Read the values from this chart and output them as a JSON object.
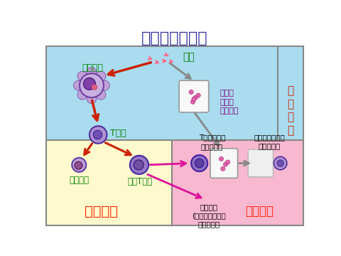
{
  "title": "细胞免疫的过程",
  "title_color": "#2b2b9b",
  "title_fontsize": 16,
  "bg_color": "#ffffff",
  "region_top_color": "#aadcef",
  "region_bottom_left_color": "#fffacd",
  "region_bottom_right_color": "#f7b8d0",
  "labels": {
    "antigen": "抗原",
    "phagocyte": "吞噬细胞",
    "infected_cell": "被抗原\n侵入的\n组织细胞",
    "t_cell": "T细胞",
    "memory_cell": "记忆细胞",
    "effector_t": "效应T细胞",
    "t_contact": "T细胞与靶细\n胞紧密接触",
    "target_destroyed": "靶细胞破裂死亡\n抗原被消灭",
    "lymphokine": "淋巴因子\n(如白细胞介素、\n干扰素等）",
    "response_stage": "感\n应\n阶\n段",
    "reaction_stage": "反应阶段",
    "effect_stage": "效应阶段"
  },
  "label_colors": {
    "antigen": "#008000",
    "phagocyte": "#008000",
    "infected_cell": "#800080",
    "t_cell": "#008000",
    "memory_cell": "#008000",
    "effector_t": "#008000",
    "t_contact": "#000000",
    "target_destroyed": "#000000",
    "lymphokine": "#000000",
    "response_stage": "#cc2200",
    "reaction_stage": "#ff2200",
    "effect_stage": "#ff2200"
  },
  "arrow_red": "#cc2200",
  "arrow_gray": "#888888",
  "arrow_pink": "#dd1199"
}
